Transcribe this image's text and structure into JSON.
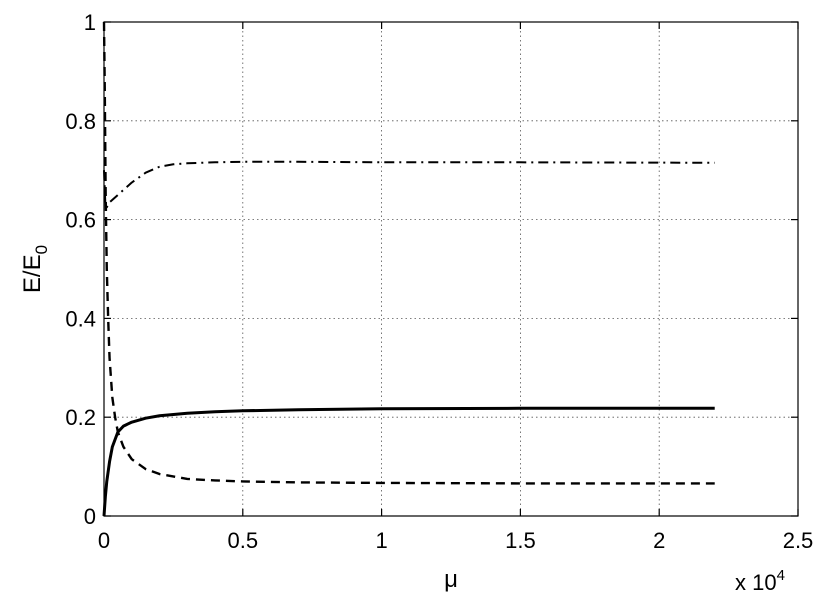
{
  "chart_data": {
    "type": "line",
    "title": "",
    "xlabel": "μ",
    "ylabel": "E/E",
    "ylabel_subscript": "0",
    "x_multiplier_prefix": "x 10",
    "x_multiplier_exponent": "4",
    "x_unit_scale": 10000,
    "xlim": [
      0,
      25000
    ],
    "ylim": [
      0,
      1
    ],
    "x_ticks": [
      0,
      5000,
      10000,
      15000,
      20000,
      25000
    ],
    "x_tick_labels": [
      "0",
      "0.5",
      "1",
      "1.5",
      "2",
      "2.5"
    ],
    "y_ticks": [
      0,
      0.2,
      0.4,
      0.6,
      0.8,
      1
    ],
    "y_tick_labels": [
      "0",
      "0.2",
      "0.4",
      "0.6",
      "0.8",
      "1"
    ],
    "grid": true,
    "series": [
      {
        "style": "solid",
        "x": [
          0,
          50,
          100,
          200,
          300,
          500,
          700,
          1000,
          1500,
          2000,
          3000,
          4000,
          5000,
          7000,
          10000,
          15000,
          18000,
          22000
        ],
        "y": [
          0,
          0.04,
          0.07,
          0.11,
          0.14,
          0.17,
          0.182,
          0.19,
          0.198,
          0.203,
          0.208,
          0.211,
          0.213,
          0.215,
          0.217,
          0.218,
          0.218,
          0.218
        ]
      },
      {
        "style": "dashed",
        "x": [
          0,
          30,
          60,
          100,
          150,
          200,
          300,
          400,
          500,
          700,
          1000,
          1500,
          2000,
          3000,
          4000,
          5000,
          7000,
          10000,
          15000,
          22000
        ],
        "y": [
          1,
          0.85,
          0.65,
          0.5,
          0.4,
          0.32,
          0.24,
          0.2,
          0.17,
          0.14,
          0.115,
          0.095,
          0.085,
          0.075,
          0.072,
          0.07,
          0.068,
          0.067,
          0.066,
          0.066
        ]
      },
      {
        "style": "dash-dot",
        "x": [
          0,
          50,
          100,
          200,
          300,
          500,
          700,
          1000,
          1500,
          2000,
          2500,
          3000,
          4000,
          5000,
          7000,
          10000,
          15000,
          22000
        ],
        "y": [
          0.7,
          0.63,
          0.625,
          0.635,
          0.64,
          0.65,
          0.66,
          0.675,
          0.695,
          0.707,
          0.712,
          0.714,
          0.716,
          0.717,
          0.717,
          0.716,
          0.716,
          0.715
        ]
      }
    ]
  }
}
